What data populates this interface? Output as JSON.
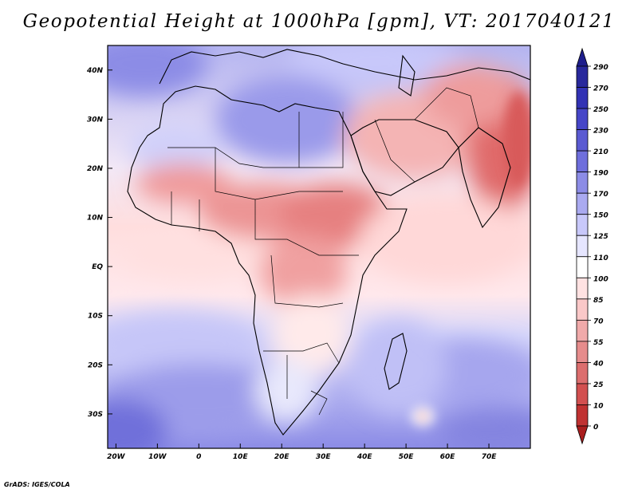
{
  "title": "Geopotential Height at 1000hPa [gpm], VT: 2017040121",
  "credit": "GrADS: IGES/COLA",
  "map": {
    "lon_range": [
      -22,
      80
    ],
    "lat_range": [
      -37,
      45
    ],
    "lon_ticks": [
      {
        "value": -20,
        "label": "20W"
      },
      {
        "value": -10,
        "label": "10W"
      },
      {
        "value": 0,
        "label": "0"
      },
      {
        "value": 10,
        "label": "10E"
      },
      {
        "value": 20,
        "label": "20E"
      },
      {
        "value": 30,
        "label": "30E"
      },
      {
        "value": 40,
        "label": "40E"
      },
      {
        "value": 50,
        "label": "50E"
      },
      {
        "value": 60,
        "label": "60E"
      },
      {
        "value": 70,
        "label": "70E"
      }
    ],
    "lat_ticks": [
      {
        "value": 40,
        "label": "40N"
      },
      {
        "value": 30,
        "label": "30N"
      },
      {
        "value": 20,
        "label": "20N"
      },
      {
        "value": 10,
        "label": "10N"
      },
      {
        "value": 0,
        "label": "EQ"
      },
      {
        "value": -10,
        "label": "10S"
      },
      {
        "value": -20,
        "label": "20S"
      },
      {
        "value": -30,
        "label": "30S"
      }
    ]
  },
  "colorbar": {
    "levels": [
      "290",
      "270",
      "250",
      "230",
      "210",
      "190",
      "170",
      "150",
      "125",
      "110",
      "100",
      "85",
      "70",
      "55",
      "40",
      "25",
      "10",
      "0"
    ],
    "colors": [
      "#1e1e8c",
      "#28289c",
      "#3232b4",
      "#4646c8",
      "#5a5ad2",
      "#6e6edc",
      "#8c8ce6",
      "#aaaaf0",
      "#c8c8fa",
      "#e6e6ff",
      "#ffffff",
      "#ffe2e2",
      "#fac8c8",
      "#f0aaaa",
      "#e68c8c",
      "#dc6e6e",
      "#d25050",
      "#c03232",
      "#aa1e1e"
    ]
  }
}
